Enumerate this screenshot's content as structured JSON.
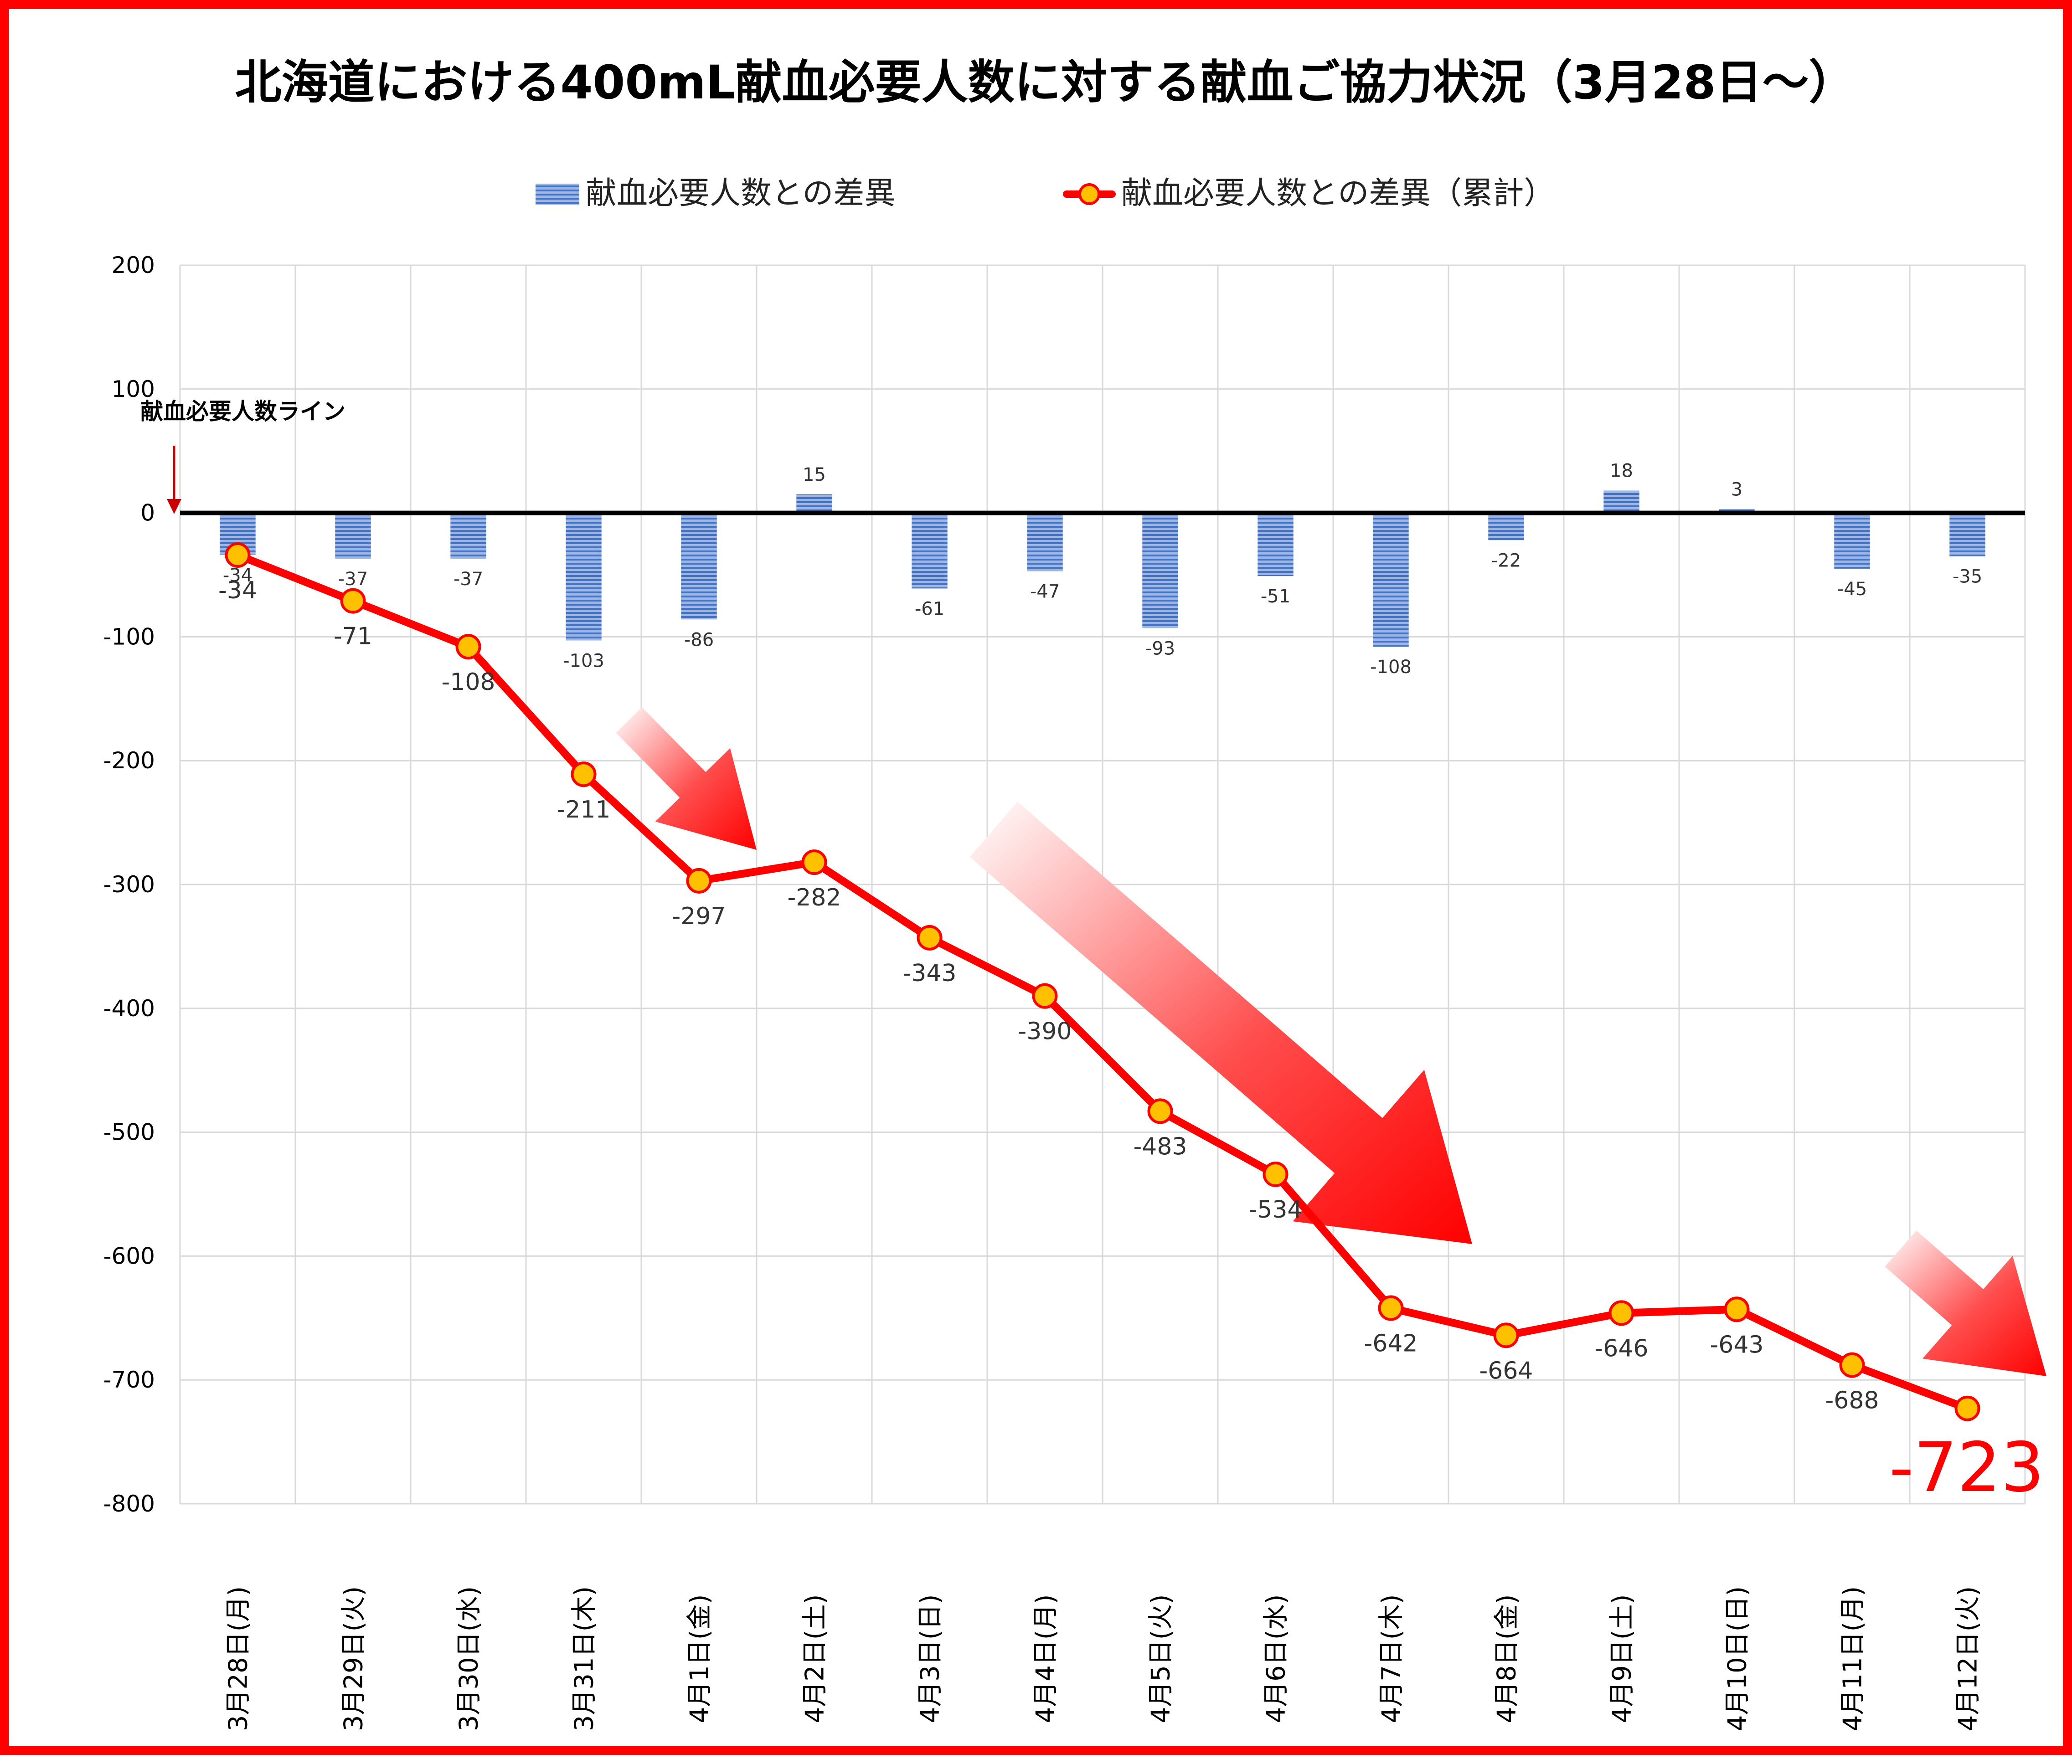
{
  "chart_data": {
    "type": "bar+line",
    "title": "北海道における400mL献血必要人数に対する献血ご協力状況（3月28日～）",
    "categories": [
      "3月28日(月)",
      "3月29日(火)",
      "3月30日(水)",
      "3月31日(木)",
      "4月1日(金)",
      "4月2日(土)",
      "4月3日(日)",
      "4月4日(月)",
      "4月5日(火)",
      "4月6日(水)",
      "4月7日(木)",
      "4月8日(金)",
      "4月9日(土)",
      "4月10日(日)",
      "4月11日(月)",
      "4月12日(火)"
    ],
    "series": [
      {
        "name": "献血必要人数との差異",
        "type": "bar",
        "color": "#4472c4",
        "values": [
          -34,
          -37,
          -37,
          -103,
          -86,
          15,
          -61,
          -47,
          -93,
          -51,
          -108,
          -22,
          18,
          3,
          -45,
          -35
        ]
      },
      {
        "name": "献血必要人数との差異（累計）",
        "type": "line",
        "color": "#ff0000",
        "marker_color": "#ffc000",
        "values": [
          -34,
          -71,
          -108,
          -211,
          -297,
          -282,
          -343,
          -390,
          -483,
          -534,
          -642,
          -664,
          -646,
          -643,
          -688,
          -723
        ]
      }
    ],
    "ylim": [
      -800,
      200
    ],
    "yticks": [
      200,
      100,
      0,
      -100,
      -200,
      -300,
      -400,
      -500,
      -600,
      -700,
      -800
    ],
    "grid": true,
    "legend_position": "top",
    "annotation": "献血必要人数ライン",
    "final_value_label": "-723"
  }
}
